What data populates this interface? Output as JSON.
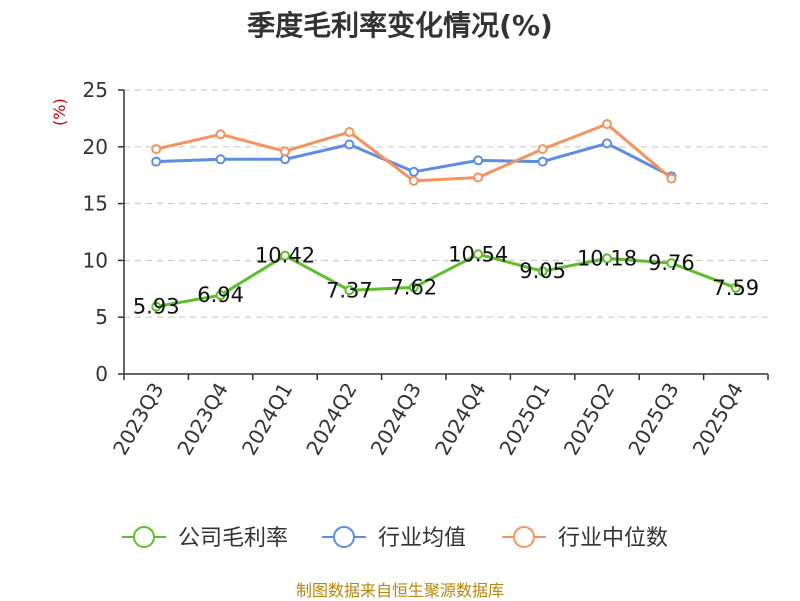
{
  "title": "季度毛利率变化情况(%)",
  "y_unit": "(%)",
  "source": "制图数据来自恒生聚源数据库",
  "colors": {
    "company": "#5cbf2a",
    "industry_avg": "#5b8de0",
    "industry_median": "#f4935c",
    "grid": "#cccccc",
    "axis": "#333333",
    "unit": "#cc0000",
    "source": "#b8860b"
  },
  "chart_data": {
    "type": "line",
    "categories": [
      "2023Q3",
      "2023Q4",
      "2024Q1",
      "2024Q2",
      "2024Q3",
      "2024Q4",
      "2025Q1",
      "2025Q2",
      "2025Q3",
      "2025Q4"
    ],
    "ylim": [
      0,
      25
    ],
    "yticks": [
      0,
      5,
      10,
      15,
      20,
      25
    ],
    "grid": true,
    "legend_position": "bottom",
    "series": [
      {
        "name": "公司毛利率",
        "color_key": "company",
        "show_labels": true,
        "values": [
          5.93,
          6.94,
          10.42,
          7.37,
          7.62,
          10.54,
          9.05,
          10.18,
          9.76,
          7.59
        ]
      },
      {
        "name": "行业均值",
        "color_key": "industry_avg",
        "show_labels": false,
        "values": [
          18.7,
          18.9,
          18.9,
          20.2,
          17.8,
          18.8,
          18.7,
          20.3,
          17.4,
          null
        ]
      },
      {
        "name": "行业中位数",
        "color_key": "industry_median",
        "show_labels": false,
        "values": [
          19.8,
          21.1,
          19.6,
          21.3,
          17.0,
          17.3,
          19.8,
          22.0,
          17.2,
          null
        ]
      }
    ]
  }
}
